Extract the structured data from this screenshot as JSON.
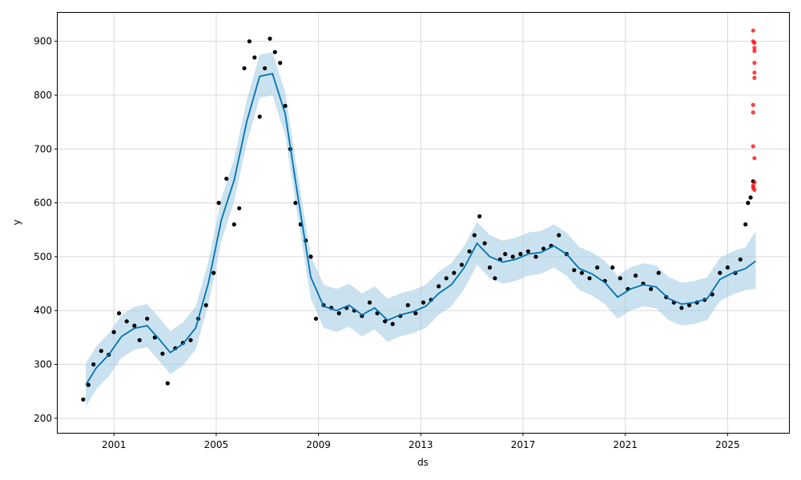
{
  "chart_data": {
    "type": "line",
    "title": "",
    "xlabel": "ds",
    "ylabel": "y",
    "x_ticks": [
      2001,
      2005,
      2009,
      2013,
      2017,
      2021,
      2025
    ],
    "y_ticks": [
      200,
      300,
      400,
      500,
      600,
      700,
      800,
      900
    ],
    "xlim": [
      1998.8,
      2027.4
    ],
    "ylim": [
      173,
      953
    ],
    "grid": true,
    "legend": "none",
    "colors": {
      "forecast_line": "#0072b2",
      "interval_band": "#9ecae1",
      "observed_points": "#000000",
      "outlier_points": "#ff0000"
    },
    "series": [
      {
        "kind": "forecast",
        "x": [
          1999.9,
          2000.3,
          2000.8,
          2001.3,
          2001.8,
          2002.3,
          2002.8,
          2003.2,
          2003.7,
          2004.2,
          2004.7,
          2005.2,
          2005.7,
          2006.2,
          2006.7,
          2007.2,
          2007.7,
          2008.2,
          2008.7,
          2009.2,
          2009.7,
          2010.2,
          2010.7,
          2011.2,
          2011.7,
          2012.2,
          2012.7,
          2013.2,
          2013.7,
          2014.2,
          2014.7,
          2015.2,
          2015.7,
          2016.2,
          2016.7,
          2017.2,
          2017.7,
          2018.2,
          2018.7,
          2019.2,
          2019.7,
          2020.2,
          2020.7,
          2021.2,
          2021.7,
          2022.2,
          2022.7,
          2023.2,
          2023.7,
          2024.2,
          2024.7,
          2025.2,
          2025.7,
          2026.1
        ],
        "yhat": [
          262,
          293,
          318,
          352,
          367,
          372,
          345,
          322,
          338,
          368,
          452,
          568,
          642,
          752,
          835,
          840,
          765,
          610,
          462,
          408,
          400,
          410,
          392,
          405,
          382,
          392,
          398,
          408,
          432,
          448,
          480,
          525,
          500,
          490,
          495,
          505,
          508,
          520,
          505,
          478,
          468,
          452,
          425,
          440,
          448,
          444,
          422,
          412,
          415,
          422,
          458,
          470,
          478,
          492
        ],
        "yhat_lower": [
          222,
          253,
          278,
          312,
          327,
          332,
          305,
          282,
          298,
          328,
          412,
          528,
          602,
          712,
          795,
          800,
          725,
          570,
          422,
          368,
          360,
          370,
          352,
          365,
          342,
          352,
          358,
          368,
          392,
          408,
          440,
          485,
          460,
          450,
          455,
          465,
          468,
          480,
          465,
          438,
          428,
          412,
          385,
          400,
          408,
          404,
          382,
          372,
          375,
          382,
          418,
          430,
          438,
          440
        ],
        "yhat_upper": [
          302,
          333,
          358,
          392,
          407,
          412,
          385,
          362,
          378,
          408,
          492,
          608,
          682,
          792,
          875,
          880,
          805,
          650,
          502,
          448,
          440,
          450,
          432,
          445,
          422,
          432,
          438,
          448,
          472,
          488,
          520,
          565,
          540,
          530,
          535,
          545,
          548,
          560,
          545,
          518,
          508,
          492,
          465,
          480,
          488,
          484,
          462,
          452,
          455,
          462,
          498,
          510,
          518,
          548
        ]
      },
      {
        "kind": "observed",
        "x": [
          1999.8,
          2000.0,
          2000.2,
          2000.5,
          2000.8,
          2001.0,
          2001.2,
          2001.5,
          2001.8,
          2002.0,
          2002.3,
          2002.6,
          2002.9,
          2003.1,
          2003.4,
          2003.7,
          2004.0,
          2004.3,
          2004.6,
          2004.9,
          2005.1,
          2005.4,
          2005.7,
          2005.9,
          2006.1,
          2006.3,
          2006.5,
          2006.7,
          2006.9,
          2007.1,
          2007.3,
          2007.5,
          2007.7,
          2007.9,
          2008.1,
          2008.3,
          2008.5,
          2008.7,
          2008.9,
          2009.2,
          2009.5,
          2009.8,
          2010.1,
          2010.4,
          2010.7,
          2011.0,
          2011.3,
          2011.6,
          2011.9,
          2012.2,
          2012.5,
          2012.8,
          2013.1,
          2013.4,
          2013.7,
          2014.0,
          2014.3,
          2014.6,
          2014.9,
          2015.1,
          2015.3,
          2015.5,
          2015.7,
          2015.9,
          2016.1,
          2016.3,
          2016.6,
          2016.9,
          2017.2,
          2017.5,
          2017.8,
          2018.1,
          2018.4,
          2018.7,
          2019.0,
          2019.3,
          2019.6,
          2019.9,
          2020.2,
          2020.5,
          2020.8,
          2021.1,
          2021.4,
          2021.7,
          2022.0,
          2022.3,
          2022.6,
          2022.9,
          2023.2,
          2023.5,
          2023.8,
          2024.1,
          2024.4,
          2024.7,
          2025.0,
          2025.3,
          2025.5,
          2025.7,
          2025.8,
          2025.9,
          2026.0
        ],
        "y": [
          235,
          262,
          300,
          325,
          318,
          360,
          395,
          380,
          372,
          345,
          385,
          350,
          320,
          265,
          330,
          340,
          345,
          385,
          410,
          470,
          600,
          645,
          560,
          590,
          850,
          900,
          870,
          760,
          850,
          905,
          880,
          860,
          780,
          700,
          600,
          560,
          530,
          500,
          385,
          410,
          405,
          395,
          405,
          400,
          390,
          415,
          395,
          380,
          375,
          390,
          410,
          395,
          415,
          420,
          445,
          460,
          470,
          485,
          510,
          540,
          575,
          525,
          480,
          460,
          495,
          505,
          500,
          505,
          510,
          500,
          515,
          520,
          540,
          505,
          475,
          470,
          460,
          480,
          455,
          480,
          460,
          440,
          465,
          450,
          440,
          470,
          425,
          415,
          405,
          410,
          415,
          420,
          430,
          470,
          480,
          470,
          495,
          560,
          600,
          610,
          640
        ]
      },
      {
        "kind": "outliers",
        "x": [
          2026.0,
          2026.0,
          2026.05,
          2026.05,
          2026.05,
          2026.05,
          2026.05,
          2026.05,
          2026.0,
          2026.0,
          2026.0,
          2026.05,
          2026.05,
          2026.0,
          2026.0,
          2026.05
        ],
        "y": [
          920,
          900,
          897,
          888,
          882,
          860,
          842,
          832,
          782,
          768,
          705,
          683,
          638,
          632,
          628,
          624
        ]
      }
    ]
  }
}
